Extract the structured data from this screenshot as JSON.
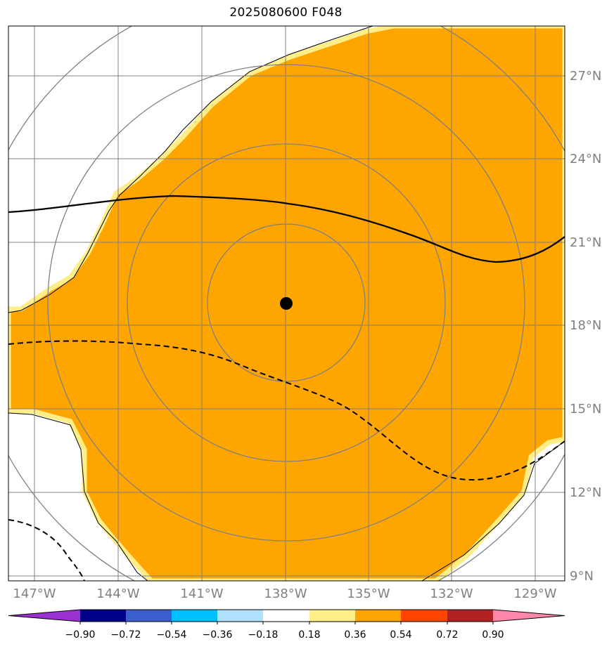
{
  "title": "2025080600 F048",
  "map": {
    "storm_center": {
      "lon": -138,
      "lat": 18.8
    },
    "lon_labels": [
      "147°W",
      "144°W",
      "141°W",
      "138°W",
      "135°W",
      "132°W",
      "129°W"
    ],
    "lat_labels": [
      "27°N",
      "24°N",
      "21°N",
      "18°N",
      "15°N",
      "12°N",
      "9°N"
    ],
    "range_rings_count": 4,
    "fill_color": "#FFA500",
    "edge_color": "#FFEE88",
    "solid_contour": "solid black line",
    "dashed_contour": "dashed black line"
  },
  "colorbar": {
    "ticks": [
      "−0.90",
      "−0.72",
      "−0.54",
      "−0.36",
      "−0.18",
      "0.18",
      "0.36",
      "0.54",
      "0.72",
      "0.90"
    ],
    "colors": [
      "#9B30D0",
      "#00008B",
      "#3A5FCD",
      "#00BFFF",
      "#B0E2FF",
      "#FFFFFF",
      "#FFEE88",
      "#FFA500",
      "#FF4500",
      "#B22222",
      "#FF88AA"
    ]
  }
}
